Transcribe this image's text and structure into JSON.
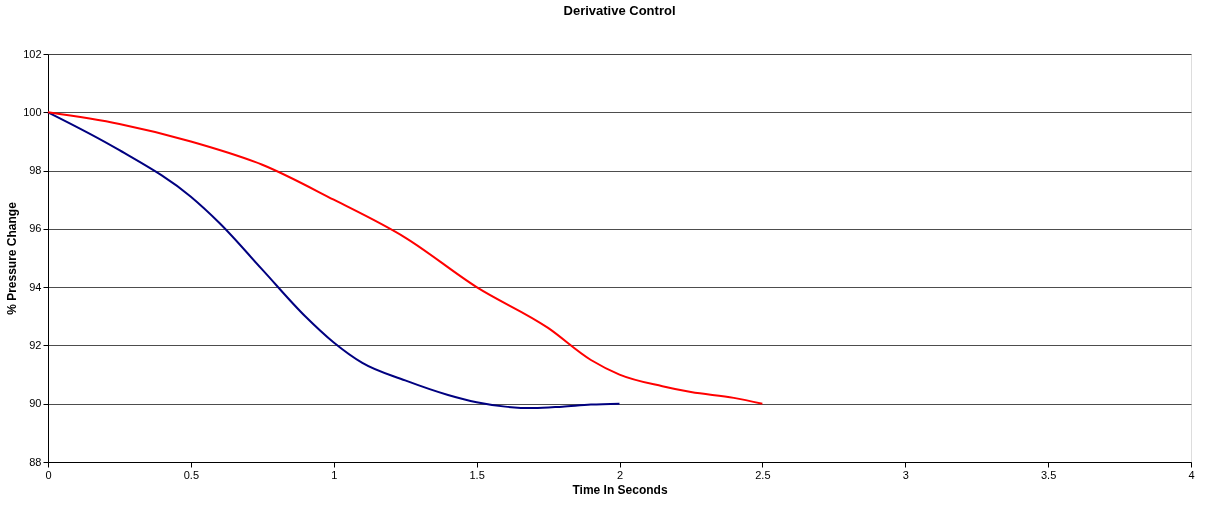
{
  "chart_data": {
    "type": "line",
    "title": "Derivative Control",
    "xlabel": "Time In Seconds",
    "ylabel": "% Pressure Change",
    "series": [
      {
        "color": "#000080",
        "x": [
          0,
          0.25,
          0.5,
          0.6,
          0.75,
          0.9,
          1,
          1.1,
          1.25,
          1.4,
          1.5,
          1.6,
          1.7,
          1.8,
          1.9,
          2
        ],
        "values": [
          100,
          98.7,
          97.1,
          96.2,
          94.6,
          93,
          92.1,
          91.4,
          90.8,
          90.3,
          90.05,
          89.9,
          89.85,
          89.9,
          89.97,
          90
        ]
      },
      {
        "color": "#ff0000",
        "x": [
          0,
          0.25,
          0.5,
          0.75,
          1,
          1.25,
          1.5,
          1.75,
          1.9,
          2,
          2.15,
          2.25,
          2.4,
          2.5
        ],
        "values": [
          100,
          99.6,
          99,
          98.2,
          97,
          95.7,
          94,
          92.6,
          91.5,
          91,
          90.6,
          90.4,
          90.2,
          90
        ]
      }
    ],
    "xlim": [
      0,
      4
    ],
    "xticks": [
      0,
      0.5,
      1,
      1.5,
      2,
      2.5,
      3,
      3.5,
      4
    ],
    "ylim": [
      88,
      102
    ],
    "yticks": [
      88,
      90,
      92,
      94,
      96,
      98,
      100,
      102
    ],
    "grid": "y",
    "marker": "none",
    "line_style": "solid"
  }
}
